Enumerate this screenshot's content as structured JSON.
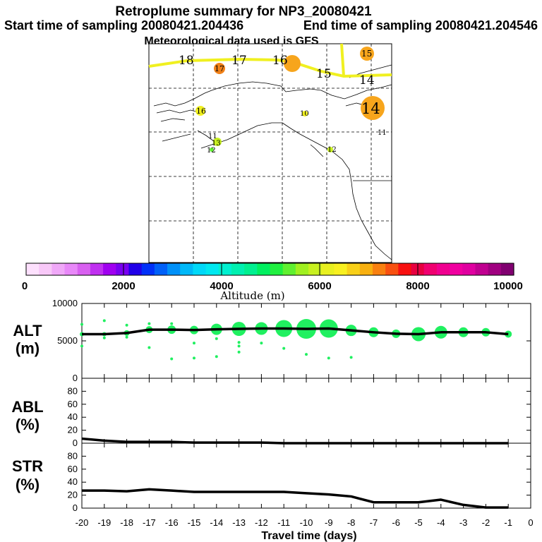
{
  "title": "Retroplume summary for NP3_20080421",
  "start_time": "Start time of sampling 20080421.204436",
  "end_time": "End time of sampling 20080421.204546",
  "met_data": "Meteorological data used is GFS",
  "colors": {
    "trajectory_yellow": "#f0f020",
    "orange": "#f7a51c",
    "dark_orange": "#f08018",
    "green": "#20f060",
    "line_black": "#000000"
  },
  "map": {
    "labels_path": [
      {
        "t": "18",
        "size": "large"
      },
      {
        "t": "17",
        "size": "large"
      },
      {
        "t": "16",
        "size": "large"
      },
      {
        "t": "15",
        "size": "large"
      },
      {
        "t": "14",
        "size": "large"
      }
    ],
    "labels_points": [
      {
        "t": "17"
      },
      {
        "t": "15"
      },
      {
        "t": "16"
      },
      {
        "t": "10"
      },
      {
        "t": "14"
      },
      {
        "t": "11"
      },
      {
        "t": "11"
      },
      {
        "t": "13"
      },
      {
        "t": "12"
      },
      {
        "t": "12"
      }
    ]
  },
  "colorbar": {
    "ticks": [
      "0",
      "2000",
      "4000",
      "6000",
      "8000",
      "10000"
    ],
    "label": "Altitude (m)",
    "colors": [
      "#fde0fd",
      "#f8c8f8",
      "#f0a8f8",
      "#e888f8",
      "#d860f0",
      "#c030f0",
      "#a000f0",
      "#7800f0",
      "#2000e8",
      "#0030f8",
      "#0060f8",
      "#0090f8",
      "#00b8f8",
      "#00d8f8",
      "#00e8f0",
      "#00f0d0",
      "#00f0b0",
      "#00f090",
      "#00f060",
      "#20f040",
      "#60f030",
      "#a0f020",
      "#c8f020",
      "#e8f020",
      "#f8f020",
      "#f8d018",
      "#f8b010",
      "#f88010",
      "#f85010",
      "#f81010",
      "#e80040",
      "#f00070",
      "#f00090",
      "#f000a0",
      "#e000a0",
      "#c00090",
      "#a00080",
      "#800070"
    ]
  },
  "chart_data": [
    {
      "type": "line",
      "panel": "ALT",
      "ylabel_lines": [
        "ALT",
        "(m)"
      ],
      "ylim": [
        0,
        10000
      ],
      "yticks": [
        "0",
        "5000",
        "10000"
      ],
      "x": [
        -20,
        -19,
        -18,
        -17,
        -16,
        -15,
        -14,
        -13,
        -12,
        -11,
        -10,
        -9,
        -8,
        -7,
        -6,
        -5,
        -4,
        -3,
        -2,
        -1
      ],
      "values": [
        5900,
        5900,
        6050,
        6500,
        6500,
        6450,
        6550,
        6600,
        6650,
        6650,
        6600,
        6650,
        6400,
        6150,
        5950,
        5900,
        6150,
        6150,
        6150,
        5900
      ],
      "bubble_radius": [
        3,
        3,
        4,
        5,
        6,
        6,
        8,
        10,
        9,
        12,
        14,
        13,
        8,
        7,
        6,
        10,
        9,
        7,
        6,
        5
      ],
      "minor_points": [
        {
          "x": -20,
          "y": 7200
        },
        {
          "x": -20,
          "y": 4300
        },
        {
          "x": -19,
          "y": 7700
        },
        {
          "x": -19,
          "y": 5400
        },
        {
          "x": -18,
          "y": 7100
        },
        {
          "x": -18,
          "y": 5500
        },
        {
          "x": -17,
          "y": 7300
        },
        {
          "x": -17,
          "y": 4100
        },
        {
          "x": -16,
          "y": 7300
        },
        {
          "x": -16,
          "y": 2600
        },
        {
          "x": -15,
          "y": 4700
        },
        {
          "x": -15,
          "y": 2700
        },
        {
          "x": -14,
          "y": 5300
        },
        {
          "x": -14,
          "y": 2900
        },
        {
          "x": -13,
          "y": 4800
        },
        {
          "x": -13,
          "y": 4300
        },
        {
          "x": -13,
          "y": 3500
        },
        {
          "x": -12,
          "y": 4700
        },
        {
          "x": -11,
          "y": 4000
        },
        {
          "x": -10,
          "y": 3200
        },
        {
          "x": -9,
          "y": 2700
        },
        {
          "x": -8,
          "y": 2800
        }
      ]
    },
    {
      "type": "line",
      "panel": "ABL",
      "ylabel_lines": [
        "ABL",
        "(%)"
      ],
      "ylim": [
        0,
        100
      ],
      "yticks": [
        "0",
        "20",
        "40",
        "60",
        "80"
      ],
      "x": [
        -20,
        -19,
        -18,
        -17,
        -16,
        -15,
        -14,
        -13,
        -12,
        -11,
        -10,
        -9,
        -8,
        -7,
        -6,
        -5,
        -4,
        -3,
        -2,
        -1
      ],
      "values": [
        7,
        4,
        2,
        2,
        2,
        1,
        1,
        1,
        1,
        0,
        0,
        0,
        0,
        0,
        0,
        0,
        0,
        0,
        0,
        0
      ]
    },
    {
      "type": "line",
      "panel": "STR",
      "ylabel_lines": [
        "STR",
        "(%)"
      ],
      "ylim": [
        0,
        100
      ],
      "yticks": [
        "0",
        "20",
        "40",
        "60",
        "80"
      ],
      "x": [
        -20,
        -19,
        -18,
        -17,
        -16,
        -15,
        -14,
        -13,
        -12,
        -11,
        -10,
        -9,
        -8,
        -7,
        -6,
        -5,
        -4,
        -3,
        -2,
        -1
      ],
      "values": [
        27,
        27,
        26,
        29,
        27,
        25,
        25,
        25,
        25,
        25,
        23,
        21,
        18,
        9,
        9,
        9,
        13,
        5,
        1,
        1
      ]
    }
  ],
  "xaxis": {
    "ticks": [
      "-20",
      "-19",
      "-18",
      "-17",
      "-16",
      "-15",
      "-14",
      "-13",
      "-12",
      "-11",
      "-10",
      "-9",
      "-8",
      "-7",
      "-6",
      "-5",
      "-4",
      "-3",
      "-2",
      "-1",
      "0"
    ],
    "label": "Travel time (days)"
  }
}
